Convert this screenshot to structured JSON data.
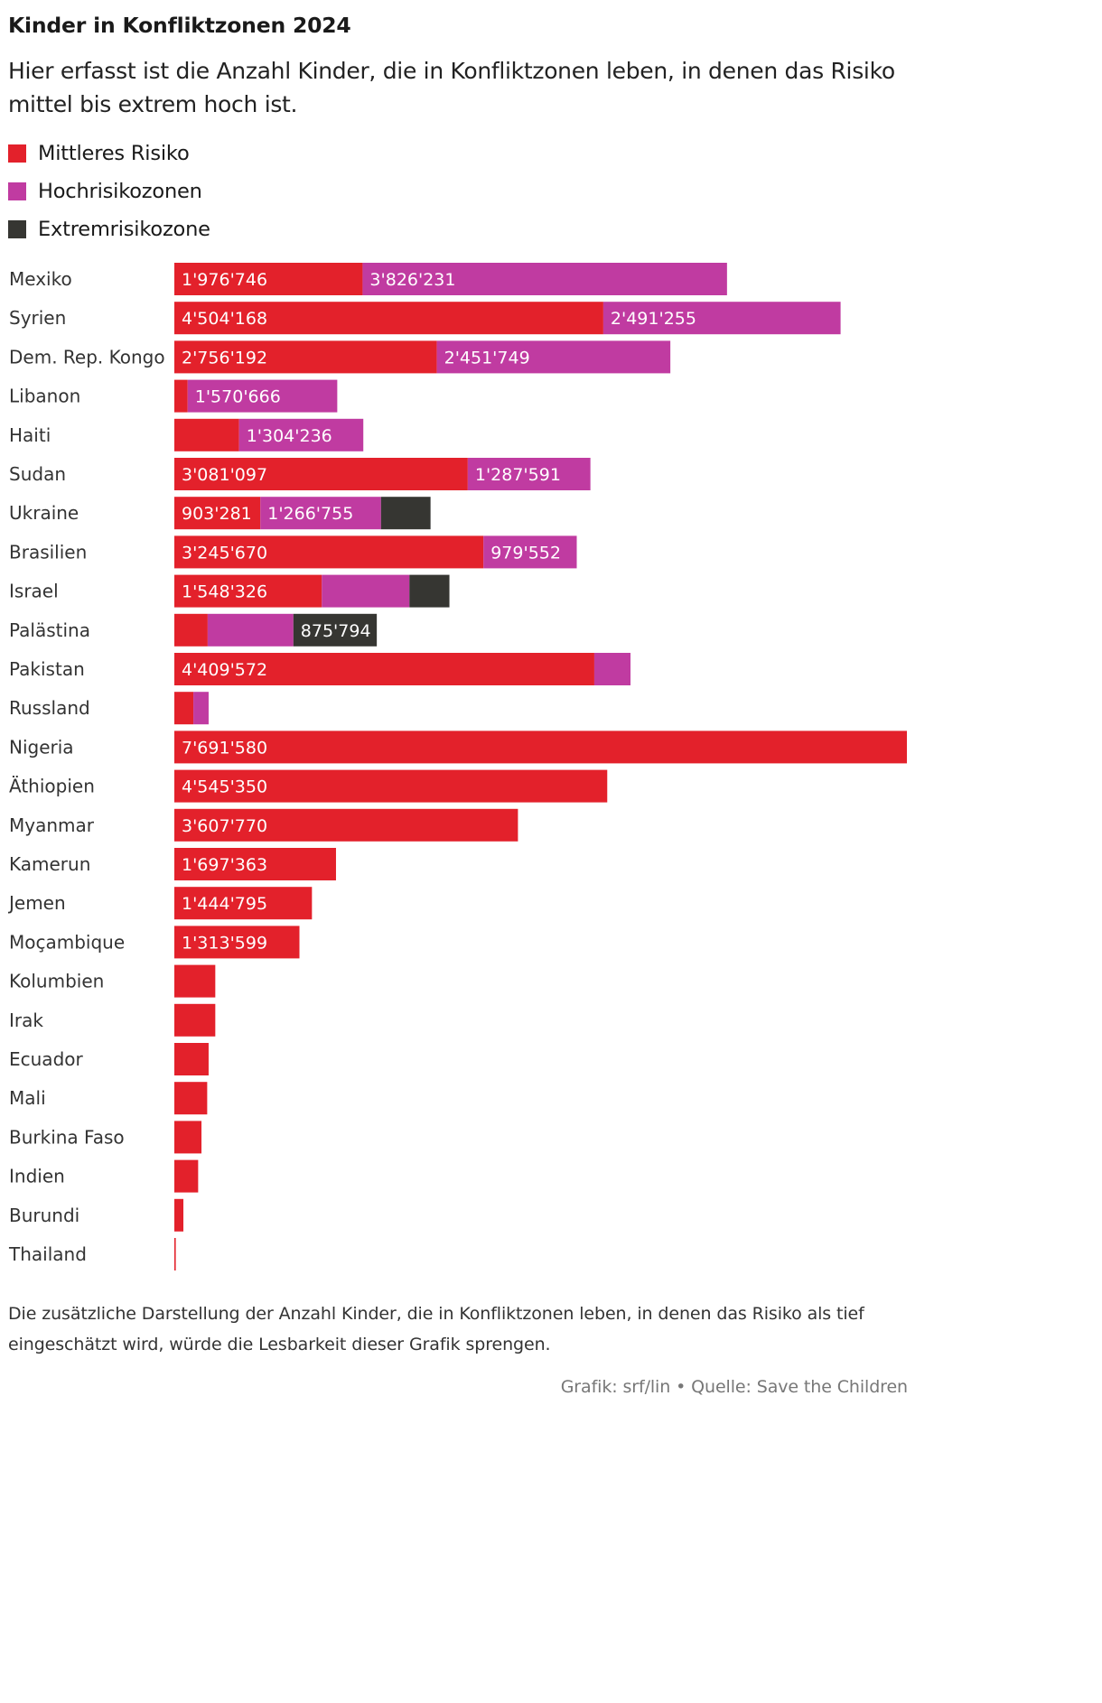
{
  "chart_data": {
    "type": "bar",
    "orientation": "horizontal",
    "stacked": true,
    "title": "Kinder in Konfliktzonen 2024",
    "subtitle": "Hier erfasst ist die Anzahl Kinder, die in Konfliktzonen leben, in denen das Risiko mittel bis extrem hoch ist.",
    "categories": [
      "Mexiko",
      "Syrien",
      "Dem. Rep. Kongo",
      "Libanon",
      "Haiti",
      "Sudan",
      "Ukraine",
      "Brasilien",
      "Israel",
      "Palästina",
      "Pakistan",
      "Russland",
      "Nigeria",
      "Äthiopien",
      "Myanmar",
      "Kamerun",
      "Jemen",
      "Moçambique",
      "Kolumbien",
      "Irak",
      "Ecuador",
      "Mali",
      "Burkina Faso",
      "Indien",
      "Burundi",
      "Thailand"
    ],
    "series": [
      {
        "name": "Mittleres Risiko",
        "color": "#e3212b",
        "values": [
          1976746,
          4504168,
          2756192,
          140000,
          680000,
          3081097,
          903281,
          3245670,
          1548326,
          350000,
          4409572,
          200000,
          7691580,
          4545350,
          3607770,
          1697363,
          1444795,
          1313599,
          430000,
          430000,
          360000,
          345000,
          285000,
          250000,
          95000,
          15000
        ]
      },
      {
        "name": "Hochrisikozonen",
        "color": "#c03ba1",
        "values": [
          3826231,
          2491255,
          2451749,
          1570666,
          1304236,
          1287591,
          1266755,
          979552,
          920000,
          900000,
          380000,
          160000,
          0,
          0,
          0,
          0,
          0,
          0,
          0,
          0,
          0,
          0,
          0,
          0,
          0,
          0
        ]
      },
      {
        "name": "Extremrisikozone",
        "color": "#363632",
        "values": [
          0,
          0,
          0,
          0,
          0,
          0,
          520000,
          0,
          420000,
          875794,
          0,
          0,
          0,
          0,
          0,
          0,
          0,
          0,
          0,
          0,
          0,
          0,
          0,
          0,
          0,
          0
        ]
      }
    ],
    "data_labels": [
      [
        "1'976'746",
        "3'826'231",
        ""
      ],
      [
        "4'504'168",
        "2'491'255",
        ""
      ],
      [
        "2'756'192",
        "2'451'749",
        ""
      ],
      [
        "",
        "1'570'666",
        ""
      ],
      [
        "",
        "1'304'236",
        ""
      ],
      [
        "3'081'097",
        "1'287'591",
        ""
      ],
      [
        "903'281",
        "1'266'755",
        ""
      ],
      [
        "3'245'670",
        "979'552",
        ""
      ],
      [
        "1'548'326",
        "",
        ""
      ],
      [
        "",
        "",
        "875'794"
      ],
      [
        "4'409'572",
        "",
        ""
      ],
      [
        "",
        "",
        ""
      ],
      [
        "7'691'580",
        "",
        ""
      ],
      [
        "4'545'350",
        "",
        ""
      ],
      [
        "3'607'770",
        "",
        ""
      ],
      [
        "1'697'363",
        "",
        ""
      ],
      [
        "1'444'795",
        "",
        ""
      ],
      [
        "1'313'599",
        "",
        ""
      ],
      [
        "",
        "",
        ""
      ],
      [
        "",
        "",
        ""
      ],
      [
        "",
        "",
        ""
      ],
      [
        "",
        "",
        ""
      ],
      [
        "",
        "",
        ""
      ],
      [
        "",
        "",
        ""
      ],
      [
        "",
        "",
        ""
      ],
      [
        "",
        "",
        ""
      ]
    ],
    "xlim": [
      0,
      7691580
    ],
    "legend_position": "top-left",
    "grid": false
  },
  "footnote": "Die zusätzliche Darstellung der Anzahl Kinder, die in Konfliktzonen leben, in denen das Risiko als tief eingeschätzt wird, würde die Lesbarkeit dieser Grafik sprengen.",
  "credit": "Grafik: srf/lin • Quelle: Save the Children"
}
